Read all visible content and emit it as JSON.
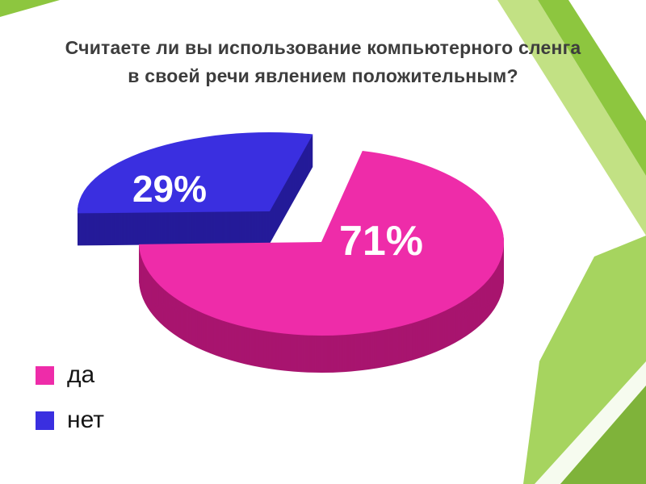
{
  "slide": {
    "title_line1": "Считаете ли вы использование компьютерного сленга",
    "title_line2": "в своей речи явлением положительным?"
  },
  "chart_data": {
    "type": "pie",
    "style": "3d-exploded-pie",
    "title": "Считаете ли вы использование компьютерного сленга в своей речи явлением положительным?",
    "labels": [
      "да",
      "нет"
    ],
    "values": [
      71,
      29
    ],
    "unit": "%",
    "value_labels": [
      "71%",
      "29%"
    ],
    "colors": [
      "#ee2ca9",
      "#3a2fe0"
    ],
    "side_colors": [
      "#a8156f",
      "#241b99"
    ],
    "label_color": "#ffffff",
    "legend_position": "bottom-left"
  },
  "decor": {
    "greens": [
      "#8dc63f",
      "#a6d45f",
      "#c2e184",
      "#7fb33a"
    ],
    "stripe": "#ffffff"
  }
}
